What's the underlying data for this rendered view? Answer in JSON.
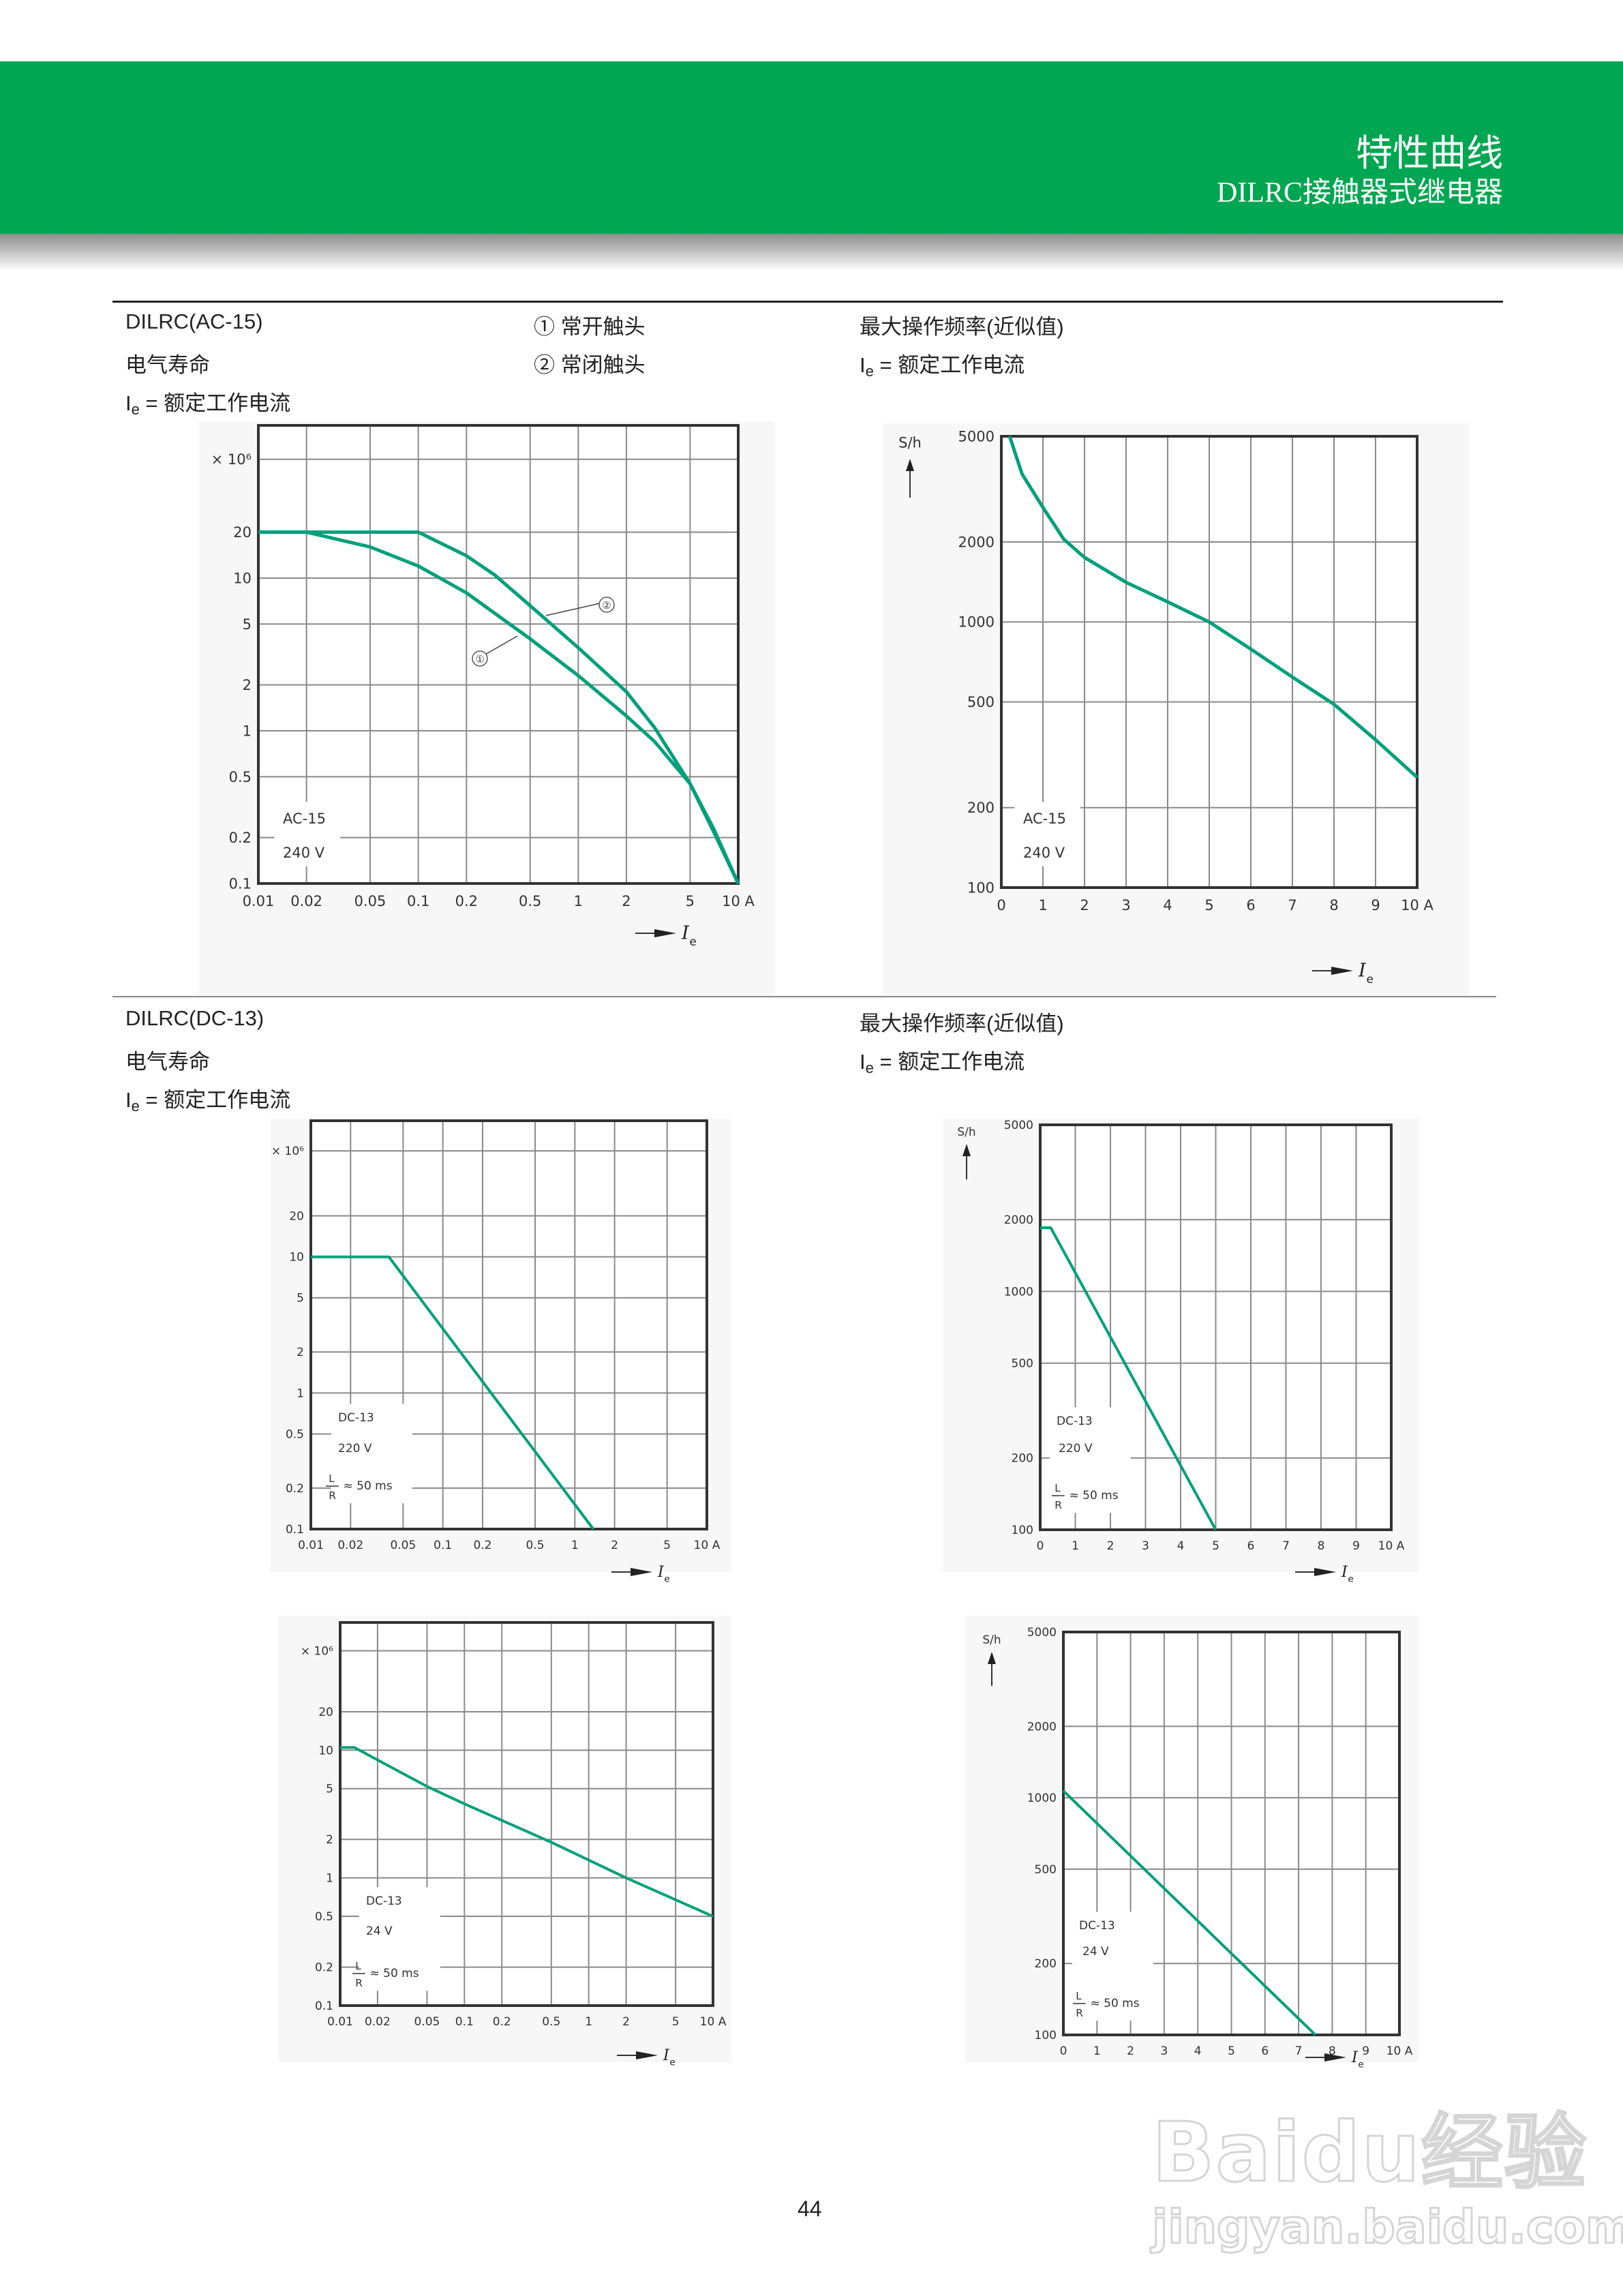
{
  "header": {
    "title": "特性曲线",
    "subtitle": "DILRC接触器式继电器",
    "band_color": "#00a651"
  },
  "section1": {
    "left": {
      "title": "DILRC(AC-15)",
      "subtitle": "电气寿命",
      "ie_symbol": "I",
      "ie_sub": "e",
      "ie_def": " = 额定工作电流"
    },
    "legend": [
      "① 常开触头",
      "② 常闭触头"
    ],
    "right": {
      "title": "最大操作频率(近似值)",
      "ie_symbol": "I",
      "ie_sub": "e",
      "ie_def": " = 额定工作电流"
    }
  },
  "section2": {
    "left": {
      "title": "DILRC(DC-13)",
      "subtitle": "电气寿命",
      "ie_symbol": "I",
      "ie_sub": "e",
      "ie_def": " = 额定工作电流"
    },
    "right": {
      "title": "最大操作频率(近似值)",
      "ie_symbol": "I",
      "ie_sub": "e",
      "ie_def": " = 额定工作电流"
    }
  },
  "page_number": "44",
  "watermark": {
    "brand": "Baidu经验",
    "url": "jingyan.baidu.com"
  },
  "curve_color": "#00a07a",
  "chart_data": [
    {
      "type": "line",
      "xscale": "log",
      "yscale": "log",
      "xlim": [
        0.01,
        10
      ],
      "ylim": [
        0.1,
        100
      ],
      "unit_label": "× 10⁶",
      "ylabel": "",
      "xlabel": "I",
      "xlabel_sub": "e",
      "x_ticks": [
        {
          "v": 0.01,
          "label": "0.01"
        },
        {
          "v": 0.02,
          "label": "0.02"
        },
        {
          "v": 0.05,
          "label": "0.05"
        },
        {
          "v": 0.1,
          "label": "0.1"
        },
        {
          "v": 0.2,
          "label": "0.2"
        },
        {
          "v": 0.5,
          "label": "0.5"
        },
        {
          "v": 1,
          "label": "1"
        },
        {
          "v": 2,
          "label": "2"
        },
        {
          "v": 5,
          "label": "5"
        },
        {
          "v": 10,
          "label": "10 A"
        }
      ],
      "y_ticks": [
        {
          "v": 0.1,
          "label": "0.1"
        },
        {
          "v": 0.2,
          "label": "0.2"
        },
        {
          "v": 0.5,
          "label": "0.5"
        },
        {
          "v": 1,
          "label": "1"
        },
        {
          "v": 2,
          "label": "2"
        },
        {
          "v": 5,
          "label": "5"
        },
        {
          "v": 10,
          "label": "10"
        },
        {
          "v": 20,
          "label": "20"
        }
      ],
      "annotations": [
        "AC-15",
        "240 V"
      ],
      "series": [
        {
          "name": "①",
          "points": [
            [
              0.01,
              20
            ],
            [
              0.02,
              20
            ],
            [
              0.05,
              16
            ],
            [
              0.1,
              12
            ],
            [
              0.2,
              8
            ],
            [
              0.5,
              4
            ],
            [
              1,
              2.3
            ],
            [
              2,
              1.25
            ],
            [
              3,
              0.85
            ],
            [
              5,
              0.45
            ],
            [
              7,
              0.23
            ],
            [
              10,
              0.1
            ]
          ]
        },
        {
          "name": "②",
          "points": [
            [
              0.01,
              20
            ],
            [
              0.1,
              20
            ],
            [
              0.2,
              14
            ],
            [
              0.3,
              10.5
            ],
            [
              0.5,
              6.6
            ],
            [
              1,
              3.5
            ],
            [
              2,
              1.8
            ],
            [
              3,
              1.05
            ],
            [
              5,
              0.45
            ],
            [
              7,
              0.22
            ],
            [
              10,
              0.1
            ]
          ]
        }
      ]
    },
    {
      "type": "line",
      "xscale": "linear",
      "yscale": "log",
      "xlim": [
        0,
        10
      ],
      "ylim": [
        100,
        5000
      ],
      "ylabel": "S/h",
      "xlabel": "I",
      "xlabel_sub": "e",
      "x_ticks": [
        {
          "v": 0,
          "label": "0"
        },
        {
          "v": 1,
          "label": "1"
        },
        {
          "v": 2,
          "label": "2"
        },
        {
          "v": 3,
          "label": "3"
        },
        {
          "v": 4,
          "label": "4"
        },
        {
          "v": 5,
          "label": "5"
        },
        {
          "v": 6,
          "label": "6"
        },
        {
          "v": 7,
          "label": "7"
        },
        {
          "v": 8,
          "label": "8"
        },
        {
          "v": 9,
          "label": "9"
        },
        {
          "v": 10,
          "label": "10 A"
        }
      ],
      "y_ticks": [
        {
          "v": 100,
          "label": "100"
        },
        {
          "v": 200,
          "label": "200"
        },
        {
          "v": 500,
          "label": "500"
        },
        {
          "v": 1000,
          "label": "1000"
        },
        {
          "v": 2000,
          "label": "2000"
        },
        {
          "v": 5000,
          "label": "5000"
        }
      ],
      "annotations": [
        "AC-15",
        "240 V"
      ],
      "series": [
        {
          "points": [
            [
              0.2,
              5000
            ],
            [
              0.5,
              3600
            ],
            [
              1,
              2700
            ],
            [
              1.5,
              2050
            ],
            [
              2,
              1750
            ],
            [
              3,
              1410
            ],
            [
              4,
              1190
            ],
            [
              5,
              1000
            ],
            [
              6,
              790
            ],
            [
              7,
              620
            ],
            [
              8,
              490
            ],
            [
              9,
              360
            ],
            [
              10,
              260
            ]
          ]
        }
      ]
    },
    {
      "type": "line",
      "xscale": "log",
      "yscale": "log",
      "xlim": [
        0.01,
        10
      ],
      "ylim": [
        0.1,
        100
      ],
      "unit_label": "× 10⁶",
      "ylabel": "",
      "xlabel": "I",
      "xlabel_sub": "e",
      "x_ticks": [
        {
          "v": 0.01,
          "label": "0.01"
        },
        {
          "v": 0.02,
          "label": "0.02"
        },
        {
          "v": 0.05,
          "label": "0.05"
        },
        {
          "v": 0.1,
          "label": "0.1"
        },
        {
          "v": 0.2,
          "label": "0.2"
        },
        {
          "v": 0.5,
          "label": "0.5"
        },
        {
          "v": 1,
          "label": "1"
        },
        {
          "v": 2,
          "label": "2"
        },
        {
          "v": 5,
          "label": "5"
        },
        {
          "v": 10,
          "label": "10 A"
        }
      ],
      "y_ticks": [
        {
          "v": 0.1,
          "label": "0.1"
        },
        {
          "v": 0.2,
          "label": "0.2"
        },
        {
          "v": 0.5,
          "label": "0.5"
        },
        {
          "v": 1,
          "label": "1"
        },
        {
          "v": 2,
          "label": "2"
        },
        {
          "v": 5,
          "label": "5"
        },
        {
          "v": 10,
          "label": "10"
        },
        {
          "v": 20,
          "label": "20"
        }
      ],
      "annotations": [
        "DC-13",
        "220 V"
      ],
      "ratio": {
        "num": "L",
        "den": "R",
        "text": "≈ 50 ms"
      },
      "series": [
        {
          "points": [
            [
              0.01,
              10
            ],
            [
              0.039,
              10
            ],
            [
              1.38,
              0.1
            ]
          ]
        }
      ]
    },
    {
      "type": "line",
      "xscale": "linear",
      "yscale": "log",
      "xlim": [
        0,
        10
      ],
      "ylim": [
        100,
        5000
      ],
      "ylabel": "S/h",
      "xlabel": "I",
      "xlabel_sub": "e",
      "x_ticks": [
        {
          "v": 0,
          "label": "0"
        },
        {
          "v": 1,
          "label": "1"
        },
        {
          "v": 2,
          "label": "2"
        },
        {
          "v": 3,
          "label": "3"
        },
        {
          "v": 4,
          "label": "4"
        },
        {
          "v": 5,
          "label": "5"
        },
        {
          "v": 6,
          "label": "6"
        },
        {
          "v": 7,
          "label": "7"
        },
        {
          "v": 8,
          "label": "8"
        },
        {
          "v": 9,
          "label": "9"
        },
        {
          "v": 10,
          "label": "10 A"
        }
      ],
      "y_ticks": [
        {
          "v": 100,
          "label": "100"
        },
        {
          "v": 200,
          "label": "200"
        },
        {
          "v": 500,
          "label": "500"
        },
        {
          "v": 1000,
          "label": "1000"
        },
        {
          "v": 2000,
          "label": "2000"
        },
        {
          "v": 5000,
          "label": "5000"
        }
      ],
      "annotations": [
        "DC-13",
        "220 V"
      ],
      "ratio": {
        "num": "L",
        "den": "R",
        "text": "≈ 50 ms"
      },
      "series": [
        {
          "points": [
            [
              0,
              1850
            ],
            [
              0.3,
              1850
            ],
            [
              5,
              100
            ]
          ]
        }
      ]
    },
    {
      "type": "line",
      "xscale": "log",
      "yscale": "log",
      "xlim": [
        0.01,
        10
      ],
      "ylim": [
        0.1,
        100
      ],
      "unit_label": "× 10⁶",
      "ylabel": "",
      "xlabel": "I",
      "xlabel_sub": "e",
      "x_ticks": [
        {
          "v": 0.01,
          "label": "0.01"
        },
        {
          "v": 0.02,
          "label": "0.02"
        },
        {
          "v": 0.05,
          "label": "0.05"
        },
        {
          "v": 0.1,
          "label": "0.1"
        },
        {
          "v": 0.2,
          "label": "0.2"
        },
        {
          "v": 0.5,
          "label": "0.5"
        },
        {
          "v": 1,
          "label": "1"
        },
        {
          "v": 2,
          "label": "2"
        },
        {
          "v": 5,
          "label": "5"
        },
        {
          "v": 10,
          "label": "10 A"
        }
      ],
      "y_ticks": [
        {
          "v": 0.1,
          "label": "0.1"
        },
        {
          "v": 0.2,
          "label": "0.2"
        },
        {
          "v": 0.5,
          "label": "0.5"
        },
        {
          "v": 1,
          "label": "1"
        },
        {
          "v": 2,
          "label": "2"
        },
        {
          "v": 5,
          "label": "5"
        },
        {
          "v": 10,
          "label": "10"
        },
        {
          "v": 20,
          "label": "20"
        }
      ],
      "annotations": [
        "DC-13",
        "24 V"
      ],
      "ratio": {
        "num": "L",
        "den": "R",
        "text": "≈ 50 ms"
      },
      "series": [
        {
          "points": [
            [
              0.01,
              10.5
            ],
            [
              0.013,
              10.5
            ],
            [
              0.05,
              5.2
            ],
            [
              0.1,
              3.8
            ],
            [
              0.5,
              1.9
            ],
            [
              2,
              1.0
            ],
            [
              10,
              0.5
            ]
          ]
        }
      ]
    },
    {
      "type": "line",
      "xscale": "linear",
      "yscale": "log",
      "xlim": [
        0,
        10
      ],
      "ylim": [
        100,
        5000
      ],
      "ylabel": "S/h",
      "xlabel": "I",
      "xlabel_sub": "e",
      "x_ticks": [
        {
          "v": 0,
          "label": "0"
        },
        {
          "v": 1,
          "label": "1"
        },
        {
          "v": 2,
          "label": "2"
        },
        {
          "v": 3,
          "label": "3"
        },
        {
          "v": 4,
          "label": "4"
        },
        {
          "v": 5,
          "label": "5"
        },
        {
          "v": 6,
          "label": "6"
        },
        {
          "v": 7,
          "label": "7"
        },
        {
          "v": 8,
          "label": "8"
        },
        {
          "v": 9,
          "label": "9"
        },
        {
          "v": 10,
          "label": "10 A"
        }
      ],
      "y_ticks": [
        {
          "v": 100,
          "label": "100"
        },
        {
          "v": 200,
          "label": "200"
        },
        {
          "v": 500,
          "label": "500"
        },
        {
          "v": 1000,
          "label": "1000"
        },
        {
          "v": 2000,
          "label": "2000"
        },
        {
          "v": 5000,
          "label": "5000"
        }
      ],
      "annotations": [
        "DC-13",
        "24 V"
      ],
      "ratio": {
        "num": "L",
        "den": "R",
        "text": "≈ 50 ms"
      },
      "series": [
        {
          "points": [
            [
              0,
              1070
            ],
            [
              7.5,
              100
            ]
          ]
        }
      ]
    }
  ]
}
